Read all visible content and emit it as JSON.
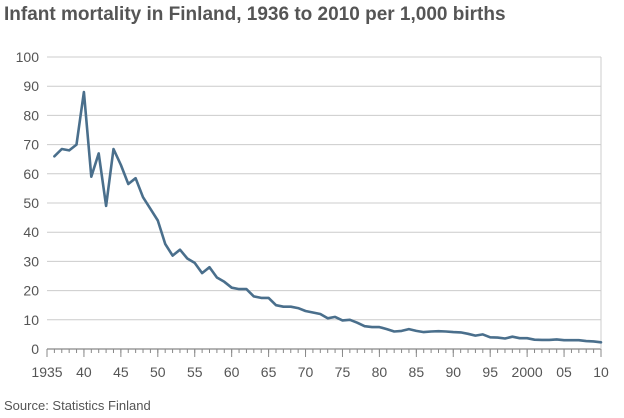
{
  "colors": {
    "line": "#4a6f8c",
    "grid": "#cccccc",
    "axis": "#888888",
    "text": "#555555"
  },
  "chart_data": {
    "type": "line",
    "title": "Infant mortality in Finland, 1936 to 2010 per 1,000 births",
    "source": "Source: Statistics Finland",
    "xlabel": "",
    "ylabel": "",
    "xlim": [
      1935,
      2010
    ],
    "ylim": [
      0,
      100
    ],
    "grid": true,
    "x_tick_values": [
      1935,
      1940,
      1945,
      1950,
      1955,
      1960,
      1965,
      1970,
      1975,
      1980,
      1985,
      1990,
      1995,
      2000,
      2005,
      2010
    ],
    "x_tick_labels": [
      "1935",
      "40",
      "45",
      "50",
      "55",
      "60",
      "65",
      "70",
      "75",
      "80",
      "85",
      "90",
      "95",
      "2000",
      "05",
      "10"
    ],
    "y_ticks": [
      0,
      10,
      20,
      30,
      40,
      50,
      60,
      70,
      80,
      90,
      100
    ],
    "series": [
      {
        "name": "Infant mortality per 1,000 births",
        "x": [
          1936,
          1937,
          1938,
          1939,
          1940,
          1941,
          1942,
          1943,
          1944,
          1945,
          1946,
          1947,
          1948,
          1949,
          1950,
          1951,
          1952,
          1953,
          1954,
          1955,
          1956,
          1957,
          1958,
          1959,
          1960,
          1961,
          1962,
          1963,
          1964,
          1965,
          1966,
          1967,
          1968,
          1969,
          1970,
          1971,
          1972,
          1973,
          1974,
          1975,
          1976,
          1977,
          1978,
          1979,
          1980,
          1981,
          1982,
          1983,
          1984,
          1985,
          1986,
          1987,
          1988,
          1989,
          1990,
          1991,
          1992,
          1993,
          1994,
          1995,
          1996,
          1997,
          1998,
          1999,
          2000,
          2001,
          2002,
          2003,
          2004,
          2005,
          2006,
          2007,
          2008,
          2009,
          2010
        ],
        "values": [
          66,
          68.5,
          68,
          70,
          88,
          59,
          67,
          49,
          68.5,
          63,
          56.5,
          58.5,
          52,
          48,
          44,
          36,
          32,
          34,
          31,
          29.5,
          26,
          28,
          24.5,
          23,
          21,
          20.5,
          20.5,
          18,
          17.5,
          17.5,
          15,
          14.5,
          14.5,
          14,
          13,
          12.5,
          12,
          10.5,
          11,
          9.8,
          10,
          9,
          7.8,
          7.5,
          7.5,
          6.8,
          6,
          6.2,
          6.8,
          6.2,
          5.8,
          6,
          6.1,
          6,
          5.8,
          5.7,
          5.2,
          4.6,
          5,
          4,
          3.9,
          3.6,
          4.2,
          3.7,
          3.7,
          3.2,
          3.1,
          3.1,
          3.3,
          3,
          3,
          3,
          2.7,
          2.6,
          2.3
        ]
      }
    ]
  }
}
